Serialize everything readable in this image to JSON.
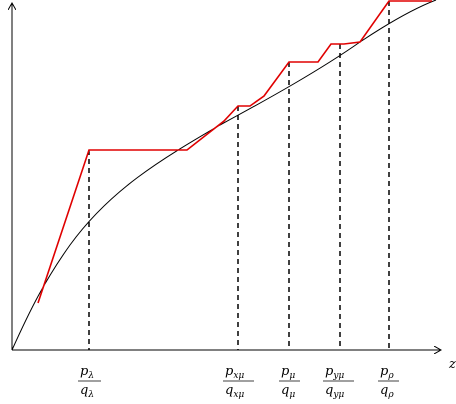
{
  "diagram": {
    "axis_label_x": "z",
    "fractions": [
      {
        "id": "lambda",
        "num": "p",
        "num_sub": "λ",
        "den": "q",
        "den_sub": "λ"
      },
      {
        "id": "xmu",
        "num": "p",
        "num_sub": "xμ",
        "den": "q",
        "den_sub": "xμ"
      },
      {
        "id": "mu",
        "num": "p",
        "num_sub": "μ",
        "den": "q",
        "den_sub": "μ"
      },
      {
        "id": "ymu",
        "num": "p",
        "num_sub": "yμ",
        "den": "q",
        "den_sub": "yμ"
      },
      {
        "id": "rho",
        "num": "p",
        "num_sub": "ρ",
        "den": "q",
        "den_sub": "ρ"
      }
    ],
    "colors": {
      "curve": "#000000",
      "step_path": "#e00000",
      "guide": "#000000",
      "axis": "#000000"
    }
  }
}
